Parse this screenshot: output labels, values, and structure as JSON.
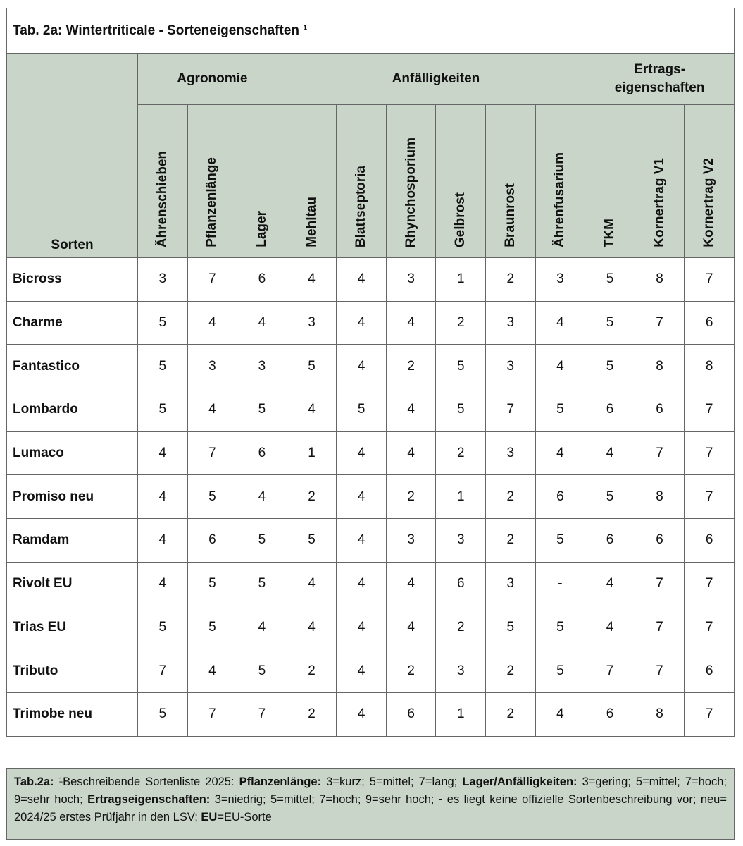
{
  "title": "Tab. 2a: Wintertriticale - Sorteneigenschaften ¹",
  "row_header": "Sorten",
  "groups": [
    {
      "label": "Agronomie",
      "columns": [
        "Ährenschieben",
        "Pflanzenlänge",
        "Lager"
      ]
    },
    {
      "label": "Anfälligkeiten",
      "columns": [
        "Mehltau",
        "Blattseptoria",
        "Rhynchosporium",
        "Gelbrost",
        "Braunrost",
        "Ährenfusarium"
      ]
    },
    {
      "label": "Ertrags-\neigenschaften",
      "columns": [
        "TKM",
        "Kornertrag V1",
        "Kornertrag V2"
      ]
    }
  ],
  "rows": [
    {
      "name": "Bicross",
      "values": [
        3,
        7,
        6,
        4,
        4,
        3,
        1,
        2,
        3,
        5,
        8,
        7
      ]
    },
    {
      "name": "Charme",
      "values": [
        5,
        4,
        4,
        3,
        4,
        4,
        2,
        3,
        4,
        5,
        7,
        6
      ]
    },
    {
      "name": "Fantastico",
      "values": [
        5,
        3,
        3,
        5,
        4,
        2,
        5,
        3,
        4,
        5,
        8,
        8
      ]
    },
    {
      "name": "Lombardo",
      "values": [
        5,
        4,
        5,
        4,
        5,
        4,
        5,
        7,
        5,
        6,
        6,
        7
      ]
    },
    {
      "name": "Lumaco",
      "values": [
        4,
        7,
        6,
        1,
        4,
        4,
        2,
        3,
        4,
        4,
        7,
        7
      ]
    },
    {
      "name": "Promiso neu",
      "values": [
        4,
        5,
        4,
        2,
        4,
        2,
        1,
        2,
        6,
        5,
        8,
        7
      ]
    },
    {
      "name": "Ramdam",
      "values": [
        4,
        6,
        5,
        5,
        4,
        3,
        3,
        2,
        5,
        6,
        6,
        6
      ]
    },
    {
      "name": "Rivolt EU",
      "values": [
        4,
        5,
        5,
        4,
        4,
        4,
        6,
        3,
        "-",
        4,
        7,
        7
      ]
    },
    {
      "name": "Trias EU",
      "values": [
        5,
        5,
        4,
        4,
        4,
        4,
        2,
        5,
        5,
        4,
        7,
        7
      ]
    },
    {
      "name": "Tributo",
      "values": [
        7,
        4,
        5,
        2,
        4,
        2,
        3,
        2,
        5,
        7,
        7,
        6
      ]
    },
    {
      "name": "Trimobe neu",
      "values": [
        5,
        7,
        7,
        2,
        4,
        6,
        1,
        2,
        4,
        6,
        8,
        7
      ]
    }
  ],
  "footnote": {
    "segments": [
      "Tab.2a:",
      " ¹Beschreibende Sortenliste 2025: ",
      "Pflanzenlänge:",
      " 3=kurz; 5=mittel; 7=lang; ",
      "Lager/Anfälligkeiten:",
      " 3=gering; 5=mittel; 7=hoch; 9=sehr hoch; ",
      "Ertragseigenschaften:",
      " 3=niedrig; 5=mittel; 7=hoch; 9=sehr hoch; - es liegt keine offizielle Sortenbeschreibung vor; neu= 2024/25 erstes Prüfjahr in den LSV; ",
      "EU",
      "=EU-Sorte"
    ]
  }
}
